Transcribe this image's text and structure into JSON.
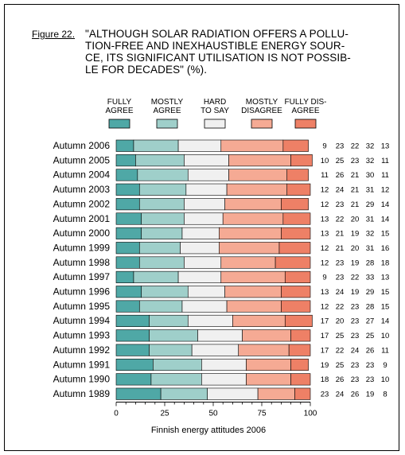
{
  "figure": {
    "label": "Figure 22.",
    "title": "\"ALTHOUGH SOLAR RADIATION OFFERS A POLLU-TION-FREE AND INEXHAUSTIBLE ENERGY SOUR-CE, ITS SIGNIFICANT UTILISATION IS NOT POSSIB-LE FOR DECADES\" (%).",
    "title_lines": [
      "\"ALTHOUGH SOLAR RADIATION OFFERS A POLLU-",
      "TION-FREE AND INEXHAUSTIBLE ENERGY SOUR-",
      "CE, ITS SIGNIFICANT UTILISATION IS NOT POSSIB-",
      "LE FOR DECADES\" (%)."
    ]
  },
  "chart_data": {
    "type": "bar",
    "orientation": "horizontal",
    "stacked": true,
    "categories": [
      "Autumn 2006",
      "Autumn 2005",
      "Autumn 2004",
      "Autumn 2003",
      "Autumn 2002",
      "Autumn 2001",
      "Autumn 2000",
      "Autumn 1999",
      "Autumn 1998",
      "Autumn 1997",
      "Autumn 1996",
      "Autumn 1995",
      "Autumn 1994",
      "Autumn 1993",
      "Autumn 1992",
      "Autumn 1991",
      "Autumn 1990",
      "Autumn 1989"
    ],
    "series": [
      {
        "name": "FULLY AGREE",
        "name_lines": [
          "FULLY",
          "AGREE"
        ],
        "color": "#4fa8a6",
        "values": [
          9,
          10,
          11,
          12,
          12,
          13,
          13,
          12,
          12,
          9,
          13,
          12,
          17,
          17,
          17,
          19,
          18,
          23
        ]
      },
      {
        "name": "MOSTLY AGREE",
        "name_lines": [
          "MOSTLY",
          "AGREE"
        ],
        "color": "#9fcfca",
        "values": [
          23,
          25,
          26,
          24,
          23,
          22,
          21,
          21,
          23,
          23,
          24,
          22,
          20,
          25,
          22,
          25,
          26,
          24
        ]
      },
      {
        "name": "HARD TO SAY",
        "name_lines": [
          "HARD",
          "TO SAY"
        ],
        "color": "#f0f0f0",
        "values": [
          22,
          23,
          21,
          21,
          21,
          20,
          19,
          20,
          19,
          22,
          19,
          23,
          23,
          23,
          24,
          23,
          23,
          26
        ]
      },
      {
        "name": "MOSTLY DISAGREE",
        "name_lines": [
          "MOSTLY",
          "DISAGREE"
        ],
        "color": "#f5aa94",
        "values": [
          32,
          32,
          30,
          31,
          29,
          31,
          32,
          31,
          28,
          33,
          29,
          28,
          27,
          25,
          26,
          23,
          23,
          19
        ]
      },
      {
        "name": "FULLY DISAGREE",
        "name_lines": [
          "FULLY DIS-",
          "AGREE"
        ],
        "color": "#ee8066",
        "values": [
          13,
          11,
          11,
          12,
          14,
          14,
          15,
          16,
          18,
          13,
          15,
          15,
          14,
          10,
          11,
          9,
          10,
          8
        ]
      }
    ],
    "xlim": [
      0,
      100
    ],
    "xticks": [
      0,
      25,
      50,
      75,
      100
    ],
    "xlabel": "Finnish energy attitudes 2006",
    "grid": false,
    "legend": "top"
  }
}
